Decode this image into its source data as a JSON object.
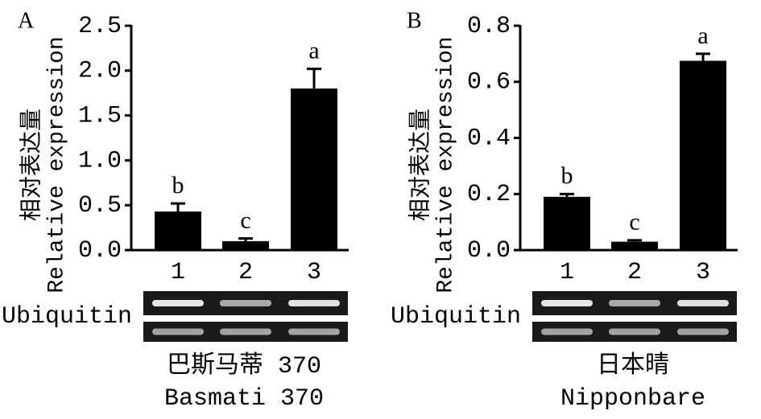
{
  "chart_data": [
    {
      "type": "bar",
      "panel_label": "A",
      "ylabel": [
        "相对表达量",
        "Relative expression"
      ],
      "categories": [
        "1",
        "2",
        "3"
      ],
      "values": [
        0.43,
        0.1,
        1.8
      ],
      "errors": [
        0.09,
        0.03,
        0.22
      ],
      "annotations": [
        "b",
        "c",
        "a"
      ],
      "color": "#000000",
      "ylim": [
        0,
        2.5
      ],
      "yticks": [
        {
          "value": 0,
          "label": "0.0"
        },
        0.5,
        {
          "value": 1,
          "label": "1.0"
        },
        1.5,
        {
          "value": 2,
          "label": "2.0"
        },
        2.5
      ],
      "gel_label": "Ubiquitin",
      "cultivar": [
        "巴斯马蒂 370",
        "Basmati 370"
      ]
    },
    {
      "type": "bar",
      "panel_label": "B",
      "ylabel": [
        "相对表达量",
        "Relative expression"
      ],
      "categories": [
        "1",
        "2",
        "3"
      ],
      "values": [
        0.19,
        0.03,
        0.675
      ],
      "errors": [
        0.01,
        0.005,
        0.025
      ],
      "annotations": [
        "b",
        "c",
        "a"
      ],
      "color": "#000000",
      "ylim": [
        0,
        0.8
      ],
      "yticks": [
        {
          "value": 0,
          "label": "0.0"
        },
        0.2,
        0.4,
        0.6,
        0.8
      ],
      "gel_label": "Ubiquitin",
      "cultivar": [
        "日本晴",
        "Nipponbare"
      ]
    }
  ]
}
